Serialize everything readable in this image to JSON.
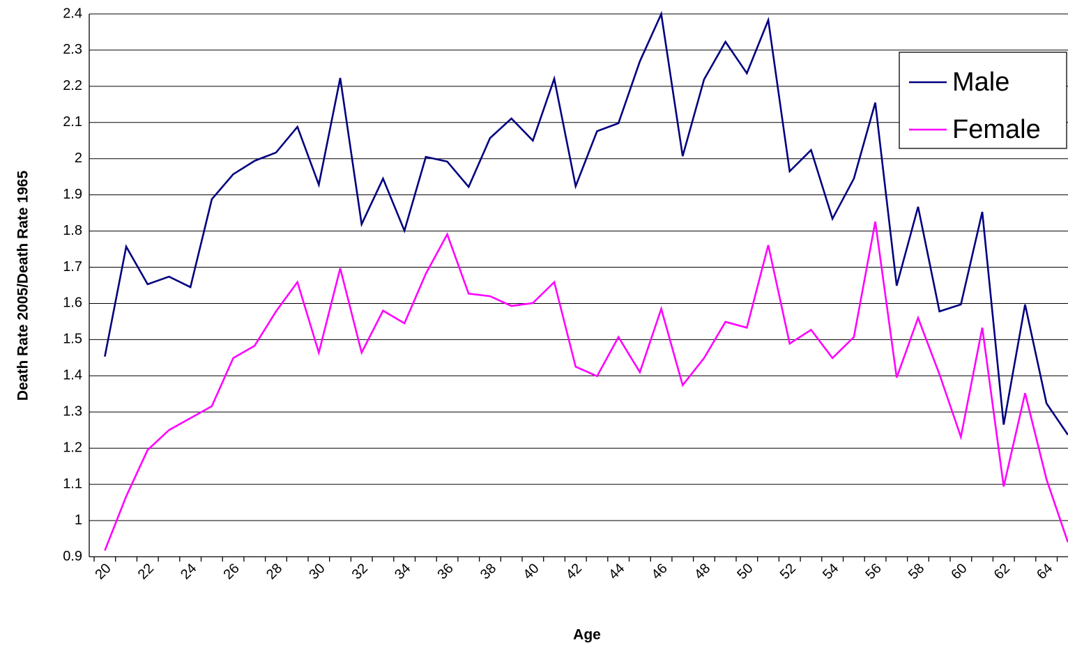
{
  "chart_data": {
    "type": "line",
    "x_label": "Age",
    "y_label": "Death Rate 2005/Death Rate 1965",
    "categories": [
      "20",
      null,
      "22",
      null,
      "24",
      null,
      "26",
      null,
      "28",
      null,
      "30",
      null,
      "32",
      null,
      "34",
      null,
      "36",
      null,
      "38",
      null,
      "40",
      null,
      "42",
      null,
      "44",
      null,
      "46",
      null,
      "48",
      null,
      "50",
      null,
      "52",
      null,
      "54",
      null,
      "56",
      null,
      "58",
      null,
      "60",
      null,
      "62",
      null,
      "64",
      null
    ],
    "series": [
      {
        "name": "Male",
        "color": "#000080",
        "values": [
          1.453,
          1.757,
          1.653,
          1.674,
          1.645,
          1.888,
          1.957,
          1.994,
          2.017,
          2.088,
          1.928,
          2.223,
          1.819,
          1.945,
          1.801,
          2.005,
          1.992,
          1.922,
          2.057,
          2.111,
          2.05,
          2.221,
          1.924,
          2.076,
          2.098,
          2.269,
          2.4,
          2.007,
          2.219,
          2.323,
          2.236,
          2.383,
          1.965,
          2.024,
          1.834,
          1.945,
          2.155,
          1.649,
          1.867,
          1.578,
          1.597,
          1.853,
          1.265,
          1.597,
          1.324,
          1.237
        ]
      },
      {
        "name": "Female",
        "color": "#ff00ff",
        "values": [
          0.917,
          1.067,
          1.195,
          1.25,
          1.283,
          1.316,
          1.449,
          1.483,
          1.578,
          1.659,
          1.464,
          1.697,
          1.464,
          1.58,
          1.545,
          1.682,
          1.791,
          1.627,
          1.62,
          1.593,
          1.601,
          1.659,
          1.425,
          1.399,
          1.507,
          1.41,
          1.585,
          1.374,
          1.449,
          1.549,
          1.533,
          1.761,
          1.489,
          1.527,
          1.449,
          1.507,
          1.826,
          1.395,
          1.56,
          1.404,
          1.231,
          1.533,
          1.094,
          1.352,
          1.114,
          0.94
        ]
      }
    ],
    "ylim": [
      0.9,
      2.4
    ],
    "yticks": [
      0.9,
      1,
      1.1,
      1.2,
      1.3,
      1.4,
      1.5,
      1.6,
      1.7,
      1.8,
      1.9,
      2,
      2.1,
      2.2,
      2.3,
      2.4
    ],
    "grid": true,
    "legend": "upper-right"
  }
}
